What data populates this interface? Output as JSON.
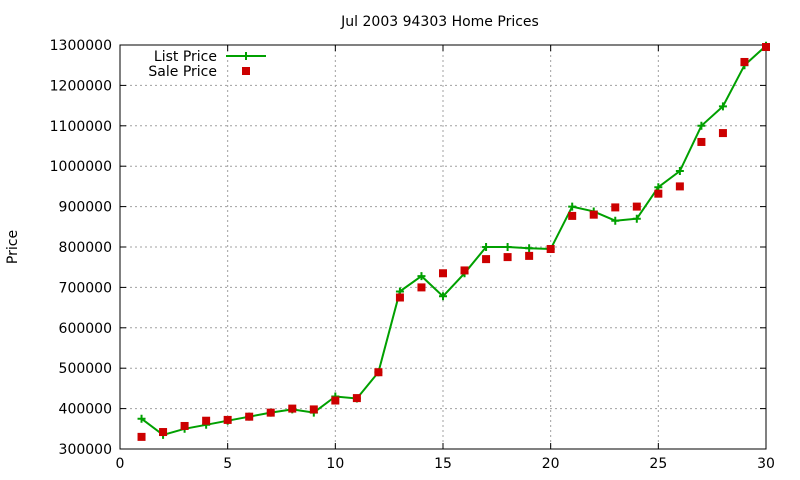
{
  "chart_data": {
    "type": "line",
    "title": "Jul 2003 94303 Home Prices",
    "xlabel": "",
    "ylabel": "Price",
    "xlim": [
      0,
      30
    ],
    "ylim": [
      300000,
      1300000
    ],
    "x_ticks": [
      0,
      5,
      10,
      15,
      20,
      25,
      30
    ],
    "y_ticks": [
      300000,
      400000,
      500000,
      600000,
      700000,
      800000,
      900000,
      1000000,
      1100000,
      1200000,
      1300000
    ],
    "grid": true,
    "legend_position": "top-left",
    "series": [
      {
        "name": "List Price",
        "style": "line+plus",
        "color": "#00a000",
        "x": [
          1,
          2,
          3,
          4,
          5,
          6,
          7,
          8,
          9,
          10,
          11,
          12,
          13,
          14,
          15,
          16,
          17,
          18,
          19,
          20,
          21,
          22,
          23,
          24,
          25,
          26,
          27,
          28,
          29,
          30
        ],
        "y": [
          375000,
          335000,
          350000,
          360000,
          370000,
          380000,
          390000,
          398000,
          390000,
          430000,
          425000,
          490000,
          690000,
          728000,
          678000,
          735000,
          800000,
          800000,
          797000,
          795000,
          900000,
          888000,
          865000,
          870000,
          948000,
          988000,
          1100000,
          1148000,
          1250000,
          1298000
        ]
      },
      {
        "name": "Sale Price",
        "style": "square",
        "color": "#cc0000",
        "x": [
          1,
          2,
          3,
          4,
          5,
          6,
          7,
          8,
          9,
          10,
          11,
          12,
          13,
          14,
          15,
          16,
          17,
          18,
          19,
          20,
          21,
          22,
          23,
          24,
          25,
          26,
          27,
          28,
          29,
          30
        ],
        "y": [
          330000,
          342000,
          357000,
          370000,
          372000,
          380000,
          390000,
          400000,
          398000,
          420000,
          426000,
          490000,
          675000,
          700000,
          735000,
          742000,
          770000,
          775000,
          778000,
          795000,
          877000,
          880000,
          898000,
          900000,
          932000,
          950000,
          1060000,
          1082000,
          1258000,
          1295000
        ]
      }
    ]
  }
}
